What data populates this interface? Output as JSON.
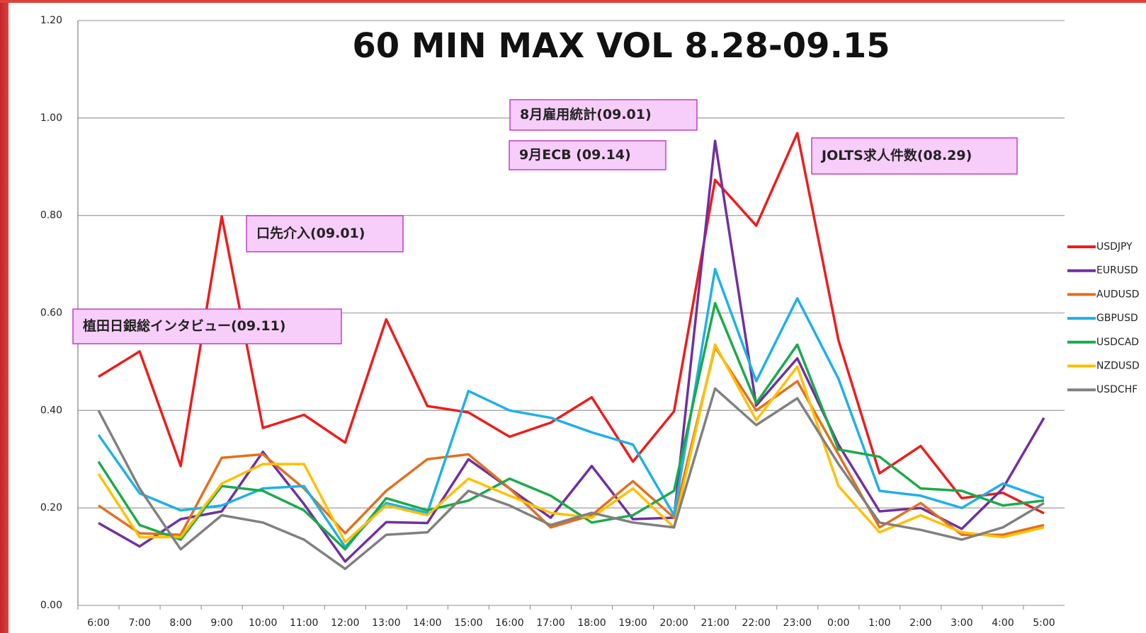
{
  "chart_data": {
    "type": "line",
    "title": "60 MIN MAX VOL 8.28-09.15",
    "categories": [
      "6:00",
      "7:00",
      "8:00",
      "9:00",
      "10:00",
      "11:00",
      "12:00",
      "13:00",
      "14:00",
      "15:00",
      "16:00",
      "17:00",
      "18:00",
      "19:00",
      "20:00",
      "21:00",
      "22:00",
      "23:00",
      "0:00",
      "1:00",
      "2:00",
      "3:00",
      "4:00",
      "5:00"
    ],
    "series": [
      {
        "name": "USDJPY",
        "color": "#ee1c1c",
        "values": [
          0.469,
          0.521,
          0.286,
          0.798,
          0.364,
          0.391,
          0.334,
          0.587,
          0.409,
          0.396,
          0.346,
          0.375,
          0.427,
          0.295,
          0.398,
          0.873,
          0.779,
          0.969,
          0.544,
          0.271,
          0.327,
          0.22,
          0.231,
          0.189
        ]
      },
      {
        "name": "EURUSD",
        "color": "#7030a0",
        "values": [
          0.169,
          0.121,
          0.177,
          0.193,
          0.315,
          0.208,
          0.09,
          0.171,
          0.169,
          0.3,
          0.24,
          0.18,
          0.286,
          0.177,
          0.18,
          0.953,
          0.41,
          0.507,
          0.33,
          0.193,
          0.2,
          0.157,
          0.24,
          0.385
        ]
      },
      {
        "name": "AUDUSD",
        "color": "#e07020",
        "values": [
          0.205,
          0.148,
          0.145,
          0.303,
          0.31,
          0.24,
          0.148,
          0.235,
          0.3,
          0.31,
          0.24,
          0.16,
          0.185,
          0.255,
          0.18,
          0.53,
          0.4,
          0.46,
          0.31,
          0.16,
          0.21,
          0.145,
          0.145,
          0.165
        ]
      },
      {
        "name": "GBPUSD",
        "color": "#1fb0e8",
        "values": [
          0.35,
          0.23,
          0.195,
          0.205,
          0.24,
          0.245,
          0.12,
          0.21,
          0.19,
          0.44,
          0.4,
          0.385,
          0.355,
          0.33,
          0.185,
          0.69,
          0.46,
          0.63,
          0.465,
          0.235,
          0.225,
          0.2,
          0.25,
          0.22
        ]
      },
      {
        "name": "USDCAD",
        "color": "#1aaa4a",
        "values": [
          0.295,
          0.165,
          0.135,
          0.245,
          0.235,
          0.195,
          0.115,
          0.22,
          0.195,
          0.215,
          0.26,
          0.225,
          0.17,
          0.185,
          0.235,
          0.62,
          0.415,
          0.535,
          0.32,
          0.305,
          0.24,
          0.235,
          0.205,
          0.215
        ]
      },
      {
        "name": "NZDUSD",
        "color": "#ffc000",
        "values": [
          0.27,
          0.14,
          0.14,
          0.25,
          0.29,
          0.29,
          0.13,
          0.205,
          0.185,
          0.26,
          0.225,
          0.19,
          0.18,
          0.24,
          0.16,
          0.535,
          0.38,
          0.49,
          0.245,
          0.15,
          0.185,
          0.15,
          0.14,
          0.16
        ]
      },
      {
        "name": "USDCHF",
        "color": "#808080",
        "values": [
          0.4,
          0.24,
          0.115,
          0.185,
          0.17,
          0.135,
          0.075,
          0.145,
          0.15,
          0.235,
          0.205,
          0.165,
          0.19,
          0.17,
          0.16,
          0.445,
          0.37,
          0.425,
          0.29,
          0.17,
          0.155,
          0.135,
          0.16,
          0.21
        ]
      }
    ],
    "ylim": [
      0,
      1.2
    ],
    "yticks": [
      {
        "value": 0,
        "label": "0.00"
      },
      {
        "value": 0.2,
        "label": "0.20"
      },
      {
        "value": 0.4,
        "label": "0.40"
      },
      {
        "value": 0.6,
        "label": "0.60"
      },
      {
        "value": 0.8,
        "label": "0.80"
      },
      {
        "value": 1,
        "label": "1.00"
      },
      {
        "value": 1.2,
        "label": "1.20"
      }
    ],
    "grid": true,
    "legend": "right",
    "annotations": [
      "口先介入(09.01)",
      "植田日銀総インタビュー(09.11)",
      "8月雇用統計(09.01)",
      "9月ECB (09.14)",
      "JOLTS求人件数(08.29)"
    ]
  }
}
